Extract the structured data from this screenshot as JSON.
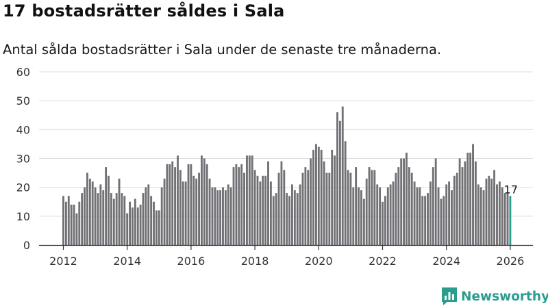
{
  "header": {
    "title": "17 bostadsrätter såldes i Sala",
    "subtitle": "Antal sålda bostadsrätter i Sala under de senaste tre månaderna."
  },
  "brand": {
    "name": "Newsworthy",
    "color": "#2a9d8f"
  },
  "chart_data": {
    "type": "bar",
    "title": "17 bostadsrätter såldes i Sala",
    "subtitle": "Antal sålda bostadsrätter i Sala under de senaste tre månaderna.",
    "xlabel": "",
    "ylabel": "",
    "ylim": [
      0,
      60
    ],
    "yticks": [
      0,
      10,
      20,
      30,
      40,
      50,
      60
    ],
    "xticks": [
      "2012",
      "2014",
      "2016",
      "2018",
      "2020",
      "2022",
      "2024",
      "2026"
    ],
    "x_start": "2012-01",
    "x_end": "2026-01",
    "frequency": "monthly",
    "bar_color": "#707075",
    "highlight_color": "#2a9d8f",
    "highlight_label": "17",
    "values": [
      17,
      15,
      17,
      14,
      14,
      11,
      15,
      18,
      20,
      25,
      23,
      22,
      20,
      18,
      21,
      19,
      27,
      24,
      18,
      16,
      18,
      23,
      18,
      17,
      11,
      15,
      13,
      16,
      13,
      14,
      18,
      20,
      21,
      17,
      15,
      12,
      12,
      20,
      23,
      28,
      28,
      29,
      27,
      31,
      26,
      22,
      22,
      28,
      28,
      24,
      23,
      25,
      31,
      30,
      28,
      23,
      20,
      20,
      19,
      19,
      20,
      19,
      21,
      20,
      27,
      28,
      27,
      28,
      25,
      31,
      31,
      31,
      26,
      24,
      22,
      24,
      24,
      29,
      22,
      17,
      18,
      25,
      29,
      26,
      18,
      17,
      21,
      19,
      18,
      21,
      25,
      27,
      26,
      30,
      33,
      35,
      34,
      33,
      29,
      25,
      25,
      33,
      31,
      46,
      43,
      48,
      36,
      26,
      25,
      20,
      27,
      20,
      19,
      16,
      23,
      27,
      26,
      26,
      21,
      20,
      15,
      17,
      20,
      21,
      22,
      25,
      27,
      30,
      30,
      32,
      27,
      25,
      22,
      20,
      20,
      17,
      17,
      18,
      22,
      27,
      30,
      20,
      16,
      17,
      21,
      22,
      19,
      24,
      25,
      30,
      27,
      29,
      32,
      32,
      35,
      29,
      21,
      20,
      19,
      23,
      24,
      23,
      26,
      21,
      22,
      20,
      18,
      18,
      17
    ]
  }
}
